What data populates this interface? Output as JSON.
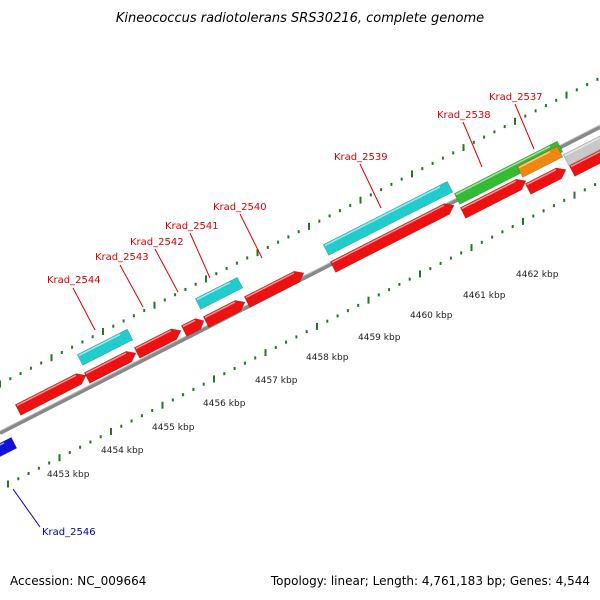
{
  "title": "Kineococcus radiotolerans SRS30216, complete genome",
  "footer": {
    "accession": "Accession: NC_009664",
    "summary": "Topology: linear; Length: 4,761,183 bp; Genes: 4,544"
  },
  "colors": {
    "red": "#ee1111",
    "cyan": "#22cccc",
    "green": "#33bb33",
    "orange": "#ee8811",
    "gray": "#c8c8c8",
    "blue": "#1111dd",
    "backbone": "#888888",
    "ticks": "#227722",
    "label_red": "#dd0000",
    "label_blue": "#0000cc"
  },
  "scale_labels": [
    "4453 kbp",
    "4454 kbp",
    "4455 kbp",
    "4456 kbp",
    "4457 kbp",
    "4458 kbp",
    "4459 kbp",
    "4460 kbp",
    "4461 kbp",
    "4462 kbp"
  ],
  "gene_labels": [
    {
      "text": "Krad_2546",
      "color": "label_blue"
    },
    {
      "text": "Krad_2544",
      "color": "label_red"
    },
    {
      "text": "Krad_2543",
      "color": "label_red"
    },
    {
      "text": "Krad_2542",
      "color": "label_red"
    },
    {
      "text": "Krad_2541",
      "color": "label_red"
    },
    {
      "text": "Krad_2540",
      "color": "label_red"
    },
    {
      "text": "Krad_2539",
      "color": "label_red"
    },
    {
      "text": "Krad_2538",
      "color": "label_red"
    },
    {
      "text": "Krad_2537",
      "color": "label_red"
    }
  ]
}
